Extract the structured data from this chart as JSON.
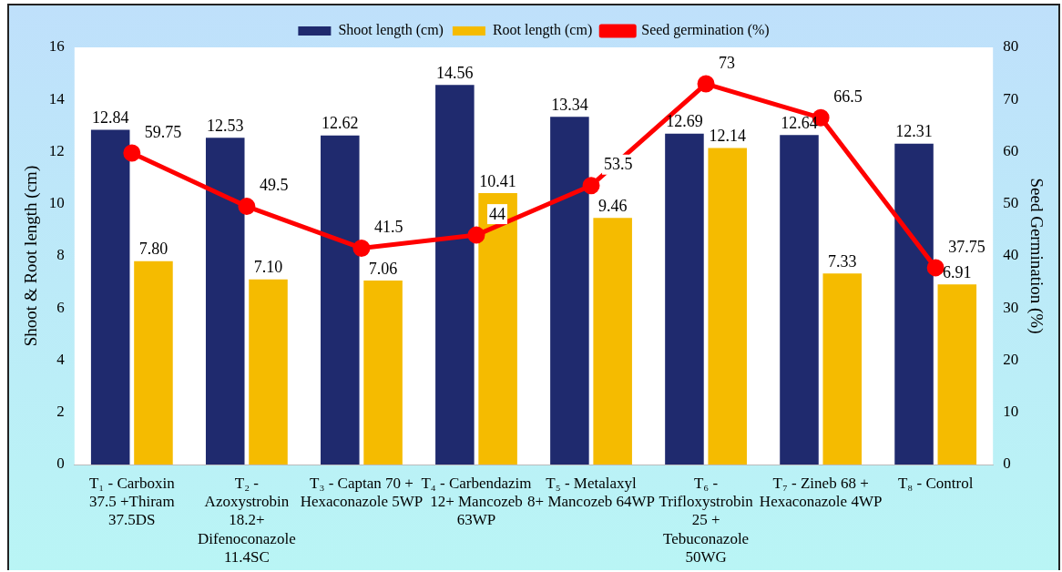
{
  "chart_data": {
    "type": "bar",
    "ylabel": "Shoot & Root length (cm)",
    "y2label": "Seed Germination (%)",
    "categories": [
      "T₁ - Carboxin 37.5 +Thiram 37.5DS",
      "T₂ - Azoxystrobin 18.2+ Difenoconazole 11.4SC",
      "T₃ - Captan 70 + Hexaconazole 5WP",
      "T₄ - Carbendazim 12+ Mancozeb 63WP",
      "T₅ - Metalaxyl 8+ Mancozeb 64WP",
      "T₆ - Trifloxystrobin 25 + Tebuconazole 50WG",
      "T₇ - Zineb 68 + Hexaconazole 4WP",
      "T₈ - Control"
    ],
    "series": [
      {
        "name": "Shoot length (cm)",
        "color": "#1f2a6e",
        "values": [
          12.84,
          12.53,
          12.62,
          14.56,
          13.34,
          12.69,
          12.64,
          12.31
        ],
        "value_labels": [
          "12.84",
          "12.53",
          "12.62",
          "14.56",
          "13.34",
          "12.69",
          "12.64",
          "12.31"
        ]
      },
      {
        "name": "Root length (cm)",
        "color": "#f5bb00",
        "values": [
          7.8,
          7.1,
          7.06,
          10.41,
          9.46,
          12.14,
          7.33,
          6.91
        ],
        "value_labels": [
          "7.80",
          "7.10",
          "7.06",
          "10.41",
          "9.46",
          "12.14",
          "7.33",
          "6.91"
        ]
      },
      {
        "name": "Seed germination (%)",
        "type": "line",
        "axis": "y2",
        "color": "#ff0000",
        "marker": "circle",
        "values": [
          59.75,
          49.5,
          41.5,
          44,
          53.5,
          73,
          66.5,
          37.75
        ],
        "value_labels": [
          "59.75",
          "49.5",
          "41.5",
          "44",
          "53.5",
          "73",
          "66.5",
          "37.75"
        ]
      }
    ],
    "ylim": [
      0,
      16
    ],
    "yticks": [
      0,
      2,
      4,
      6,
      8,
      10,
      12,
      14,
      16
    ],
    "y2lim": [
      0,
      80
    ],
    "y2ticks": [
      0,
      10,
      20,
      30,
      40,
      50,
      60,
      70,
      80
    ],
    "grid": false,
    "legend": "top"
  }
}
